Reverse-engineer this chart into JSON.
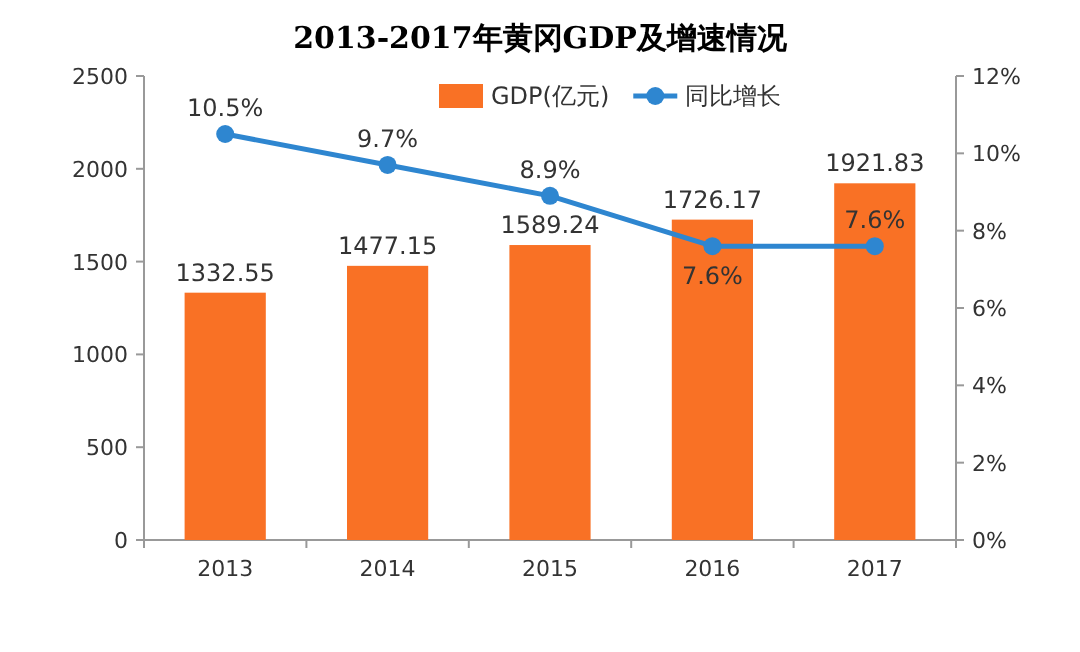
{
  "chart_data": {
    "type": "bar",
    "title": "2013-2017年黄冈GDP及增速情况",
    "categories": [
      "2013",
      "2014",
      "2015",
      "2016",
      "2017"
    ],
    "series": [
      {
        "name": "GDP(亿元)",
        "color": "#f97125",
        "values": [
          1332.55,
          1477.15,
          1589.24,
          1726.17,
          1921.83
        ],
        "value_labels": [
          "1332.55",
          "1477.15",
          "1589.24",
          "1726.17",
          "1921.83"
        ]
      },
      {
        "name": "同比增长",
        "type": "line",
        "axis": "y2",
        "color": "#2e86d0",
        "values": [
          10.5,
          9.7,
          8.9,
          7.6,
          7.6
        ],
        "value_labels": [
          "10.5%",
          "9.7%",
          "8.9%",
          "7.6%",
          "7.6%"
        ]
      }
    ],
    "ylim": [
      0,
      2500
    ],
    "yticks": [
      0,
      500,
      1000,
      1500,
      2000,
      2500
    ],
    "y2lim": [
      0,
      12
    ],
    "y2ticks": [
      {
        "value": 0,
        "label": "0%"
      },
      {
        "value": 2,
        "label": "2%"
      },
      {
        "value": 4,
        "label": "4%"
      },
      {
        "value": 6,
        "label": "6%"
      },
      {
        "value": 8,
        "label": "8%"
      },
      {
        "value": 10,
        "label": "10%"
      },
      {
        "value": 12,
        "label": "12%"
      }
    ],
    "marker": "circle",
    "line_style": "solid",
    "legend": "top",
    "grid": false
  }
}
